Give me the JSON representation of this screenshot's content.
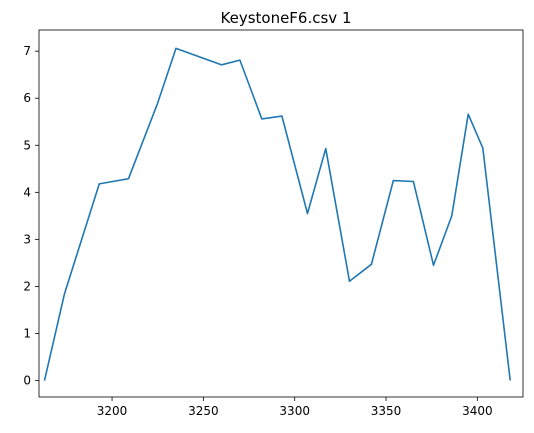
{
  "chart_data": {
    "type": "line",
    "title": "KeystoneF6.csv 1",
    "xlabel": "",
    "ylabel": "",
    "xlim": [
      3160,
      3425
    ],
    "ylim": [
      -0.35,
      7.45
    ],
    "xticks": [
      3200,
      3250,
      3300,
      3350,
      3400
    ],
    "yticks": [
      0,
      1,
      2,
      3,
      4,
      5,
      6,
      7
    ],
    "grid": false,
    "line_color": "#1f77b4",
    "series": [
      {
        "x": [
          3163,
          3174,
          3193,
          3209,
          3225,
          3235,
          3260,
          3270,
          3282,
          3293,
          3307,
          3317,
          3330,
          3342,
          3354,
          3365,
          3376,
          3386,
          3395,
          3403,
          3418
        ],
        "y": [
          0,
          1.85,
          4.18,
          4.29,
          5.9,
          7.06,
          6.71,
          6.81,
          5.56,
          5.62,
          3.55,
          4.93,
          2.11,
          2.47,
          4.25,
          4.23,
          2.45,
          3.5,
          5.66,
          4.94,
          0
        ]
      }
    ]
  }
}
